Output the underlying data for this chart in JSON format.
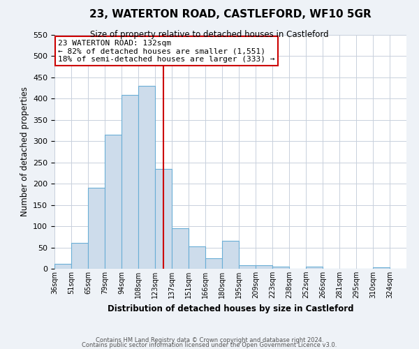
{
  "title": "23, WATERTON ROAD, CASTLEFORD, WF10 5GR",
  "subtitle": "Size of property relative to detached houses in Castleford",
  "xlabel": "Distribution of detached houses by size in Castleford",
  "ylabel": "Number of detached properties",
  "bar_color": "#cddceb",
  "bar_edge_color": "#6aaed6",
  "bin_labels": [
    "36sqm",
    "51sqm",
    "65sqm",
    "79sqm",
    "94sqm",
    "108sqm",
    "123sqm",
    "137sqm",
    "151sqm",
    "166sqm",
    "180sqm",
    "195sqm",
    "209sqm",
    "223sqm",
    "238sqm",
    "252sqm",
    "266sqm",
    "281sqm",
    "295sqm",
    "310sqm",
    "324sqm"
  ],
  "bar_heights": [
    12,
    60,
    190,
    315,
    408,
    430,
    235,
    95,
    53,
    25,
    65,
    8,
    8,
    5,
    0,
    5,
    0,
    0,
    0,
    3,
    0
  ],
  "ylim": [
    0,
    550
  ],
  "yticks": [
    0,
    50,
    100,
    150,
    200,
    250,
    300,
    350,
    400,
    450,
    500,
    550
  ],
  "vline_x": 6.5,
  "vline_color": "#cc0000",
  "annotation_title": "23 WATERTON ROAD: 132sqm",
  "annotation_line1": "← 82% of detached houses are smaller (1,551)",
  "annotation_line2": "18% of semi-detached houses are larger (333) →",
  "annotation_box_color": "#ffffff",
  "annotation_box_edge": "#cc0000",
  "footer1": "Contains HM Land Registry data © Crown copyright and database right 2024.",
  "footer2": "Contains public sector information licensed under the Open Government Licence v3.0.",
  "background_color": "#eef2f7",
  "plot_bg_color": "#ffffff",
  "grid_color": "#c8d0dc"
}
